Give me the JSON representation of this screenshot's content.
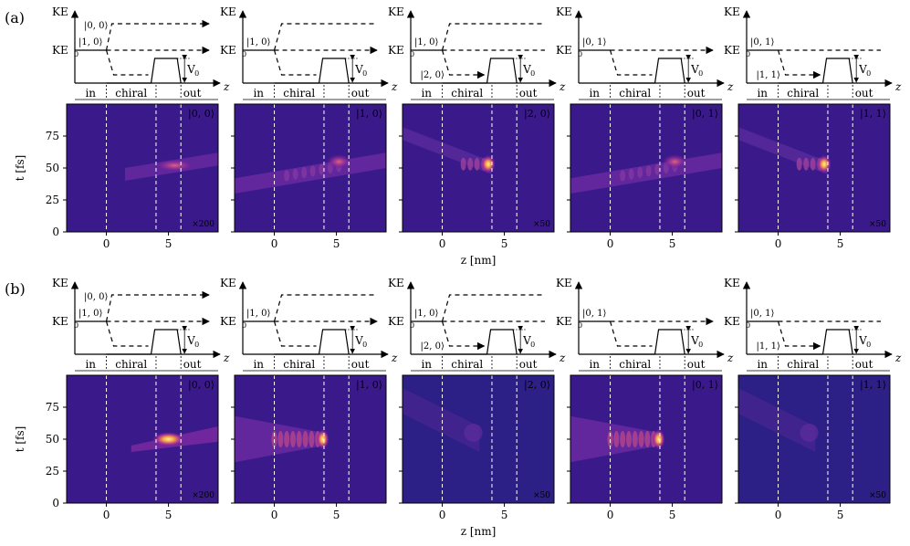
{
  "figure": {
    "row_labels": [
      "(a)",
      "(b)"
    ],
    "ke_label": "KE",
    "ke0_label": "KE",
    "ke0_sub": "0",
    "v0_label": "V",
    "v0_sub": "0",
    "z_label": "z",
    "regions": [
      "in",
      "chiral",
      "out"
    ],
    "ylabel": "t [fs]",
    "xlabel": "z [nm]",
    "y_ticks": [
      "0",
      "25",
      "50",
      "75"
    ],
    "x_ticks": [
      "0",
      "5"
    ],
    "colors": {
      "bg": "#2a1a7a",
      "mid": "#6a1a9a",
      "hot": "#f0a040",
      "peak": "#ffe080"
    }
  },
  "rows": [
    {
      "label": "(a)",
      "panels": [
        {
          "state": "|0, 0⟩",
          "scale": "×200",
          "top_state": "|0, 0⟩",
          "bottom_state": "|1, 0⟩",
          "mid_state": ""
        },
        {
          "state": "|1, 0⟩",
          "scale": "",
          "top_state": "",
          "bottom_state": "|1, 0⟩",
          "mid_state": ""
        },
        {
          "state": "|2, 0⟩",
          "scale": "×50",
          "top_state": "",
          "bottom_state": "|1, 0⟩",
          "mid_state": "|2, 0⟩"
        },
        {
          "state": "|0, 1⟩",
          "scale": "",
          "top_state": "",
          "bottom_state": "|0, 1⟩",
          "mid_state": ""
        },
        {
          "state": "|1, 1⟩",
          "scale": "×50",
          "top_state": "",
          "bottom_state": "|0, 1⟩",
          "mid_state": "|1, 1⟩"
        }
      ]
    },
    {
      "label": "(b)",
      "panels": [
        {
          "state": "|0, 0⟩",
          "scale": "×200",
          "top_state": "|0, 0⟩",
          "bottom_state": "|1, 0⟩",
          "mid_state": ""
        },
        {
          "state": "|1, 0⟩",
          "scale": "",
          "top_state": "",
          "bottom_state": "|1, 0⟩",
          "mid_state": ""
        },
        {
          "state": "|2, 0⟩",
          "scale": "×50",
          "top_state": "",
          "bottom_state": "|1, 0⟩",
          "mid_state": "|2, 0⟩"
        },
        {
          "state": "|0, 1⟩",
          "scale": "",
          "top_state": "",
          "bottom_state": "|0, 1⟩",
          "mid_state": ""
        },
        {
          "state": "|1, 1⟩",
          "scale": "×50",
          "top_state": "",
          "bottom_state": "|0, 1⟩",
          "mid_state": "|1, 1⟩"
        }
      ]
    }
  ]
}
